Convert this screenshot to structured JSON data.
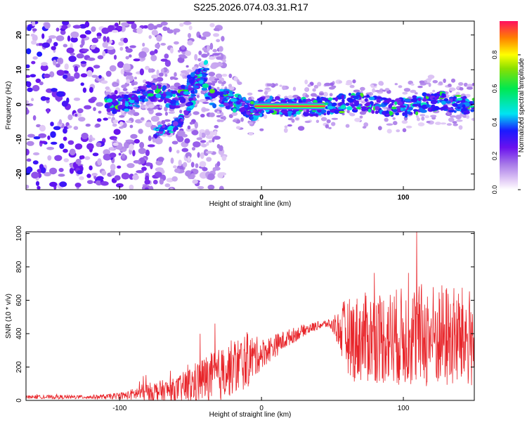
{
  "title": "S225.2026.074.03.31.R17",
  "colors": {
    "axis": "#000000",
    "snr_line": "#e8252a",
    "background": "#ffffff"
  },
  "chart_data": [
    {
      "type": "heatmap",
      "name": "spectrogram",
      "xlabel": "Height of straight line (km)",
      "ylabel": "Frequency (Hz)",
      "xlim": [
        -166,
        150
      ],
      "ylim": [
        -24.5,
        24
      ],
      "xticks": [
        -100,
        0,
        100
      ],
      "xtick_labels": [
        "-100",
        "0",
        "100"
      ],
      "yticks": [
        -20,
        -10,
        0,
        10,
        20
      ],
      "ytick_labels": [
        "-20",
        "-10",
        "0",
        "10",
        "20"
      ],
      "ridge": {
        "x": [
          -110,
          -100,
          -90,
          -80,
          -70,
          -60,
          -50,
          -42,
          -35,
          -25,
          -20,
          -15,
          -10,
          -5,
          0,
          10,
          20,
          30,
          40,
          50,
          60,
          70,
          80,
          90,
          100,
          110,
          120,
          130,
          140,
          150
        ],
        "freq": [
          0,
          0,
          1,
          4,
          3,
          1,
          6,
          8,
          2,
          2,
          1,
          0,
          -1,
          -2,
          -0.5,
          -0.5,
          -0.5,
          -0.5,
          -0.5,
          0,
          0.5,
          0.5,
          0,
          -1,
          -1,
          0,
          1,
          1,
          0,
          -1
        ]
      },
      "branch": {
        "x": [
          -75,
          -65,
          -55,
          -48,
          -42,
          -38
        ],
        "freq": [
          -8,
          -7,
          -4,
          2,
          8,
          12
        ]
      },
      "core": {
        "x_start": -5,
        "x_end": 45,
        "freq": -0.5,
        "amplitude": 1.0
      }
    },
    {
      "type": "colorbar",
      "label": "Normalized spectral amplitude",
      "range": [
        0,
        1
      ],
      "ticks": [
        0.0,
        0.2,
        0.4,
        0.6,
        0.8
      ],
      "tick_labels": [
        "0.0",
        "0.2",
        "0.4",
        "0.6",
        "0.8"
      ]
    },
    {
      "type": "line",
      "name": "snr",
      "xlabel": "Height of straight line (km)",
      "ylabel": "SNR (10 * v/v)",
      "xlim": [
        -166,
        150
      ],
      "ylim": [
        0,
        1010
      ],
      "xticks": [
        -100,
        0,
        100
      ],
      "xtick_labels": [
        "-100",
        "0",
        "100"
      ],
      "yticks": [
        0,
        200,
        400,
        600,
        800,
        1000
      ],
      "ytick_labels": [
        "0",
        "200",
        "400",
        "600",
        "800",
        "1000"
      ],
      "envelope": {
        "x": [
          -166,
          -130,
          -110,
          -95,
          -85,
          -75,
          -60,
          -50,
          -40,
          -30,
          -20,
          -10,
          0,
          10,
          20,
          30,
          40,
          47,
          52,
          58,
          65,
          80,
          100,
          115,
          130,
          150
        ],
        "mean": [
          20,
          20,
          22,
          30,
          45,
          55,
          65,
          90,
          130,
          150,
          200,
          240,
          280,
          330,
          380,
          420,
          450,
          460,
          440,
          400,
          370,
          380,
          380,
          390,
          380,
          370
        ],
        "amp": [
          10,
          12,
          14,
          25,
          50,
          60,
          70,
          120,
          140,
          160,
          170,
          170,
          90,
          70,
          50,
          35,
          25,
          25,
          60,
          200,
          260,
          280,
          300,
          320,
          320,
          300
        ]
      }
    }
  ]
}
